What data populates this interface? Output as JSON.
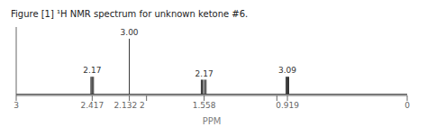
{
  "chart_data": {
    "type": "stem",
    "title": "Figure [1] ¹H NMR spectrum for unknown ketone #6.",
    "xlabel": "PPM",
    "color": "#333333",
    "xlim": [
      3,
      0
    ],
    "ylim": [
      -0.02,
      1.15
    ],
    "xticks": [
      3,
      2.417,
      {
        "value": 2.132,
        "label": "2.132 2"
      },
      {
        "value": 2,
        "label": ""
      },
      1.558,
      {
        "value": 1,
        "label": ""
      },
      0.919,
      0
    ],
    "tick_labels": "x",
    "x": [
      2.407,
      2.414,
      2.42,
      2.427,
      2.132,
      1.543,
      1.553,
      1.563,
      1.573,
      1.58,
      0.909,
      0.916,
      0.922,
      0.929
    ],
    "values": [
      0.3,
      0.3,
      0.3,
      0.3,
      0.95,
      0.25,
      0.25,
      0.25,
      0.25,
      0.25,
      0.3,
      0.3,
      0.3,
      0.3
    ],
    "annotations": [
      {
        "x": 2.417,
        "y": 0.33,
        "text": "2.17"
      },
      {
        "x": 2.132,
        "y": 0.98,
        "text": "3.00"
      },
      {
        "x": 1.558,
        "y": 0.28,
        "text": "2.17"
      },
      {
        "x": 0.919,
        "y": 0.33,
        "text": "3.09"
      }
    ]
  }
}
